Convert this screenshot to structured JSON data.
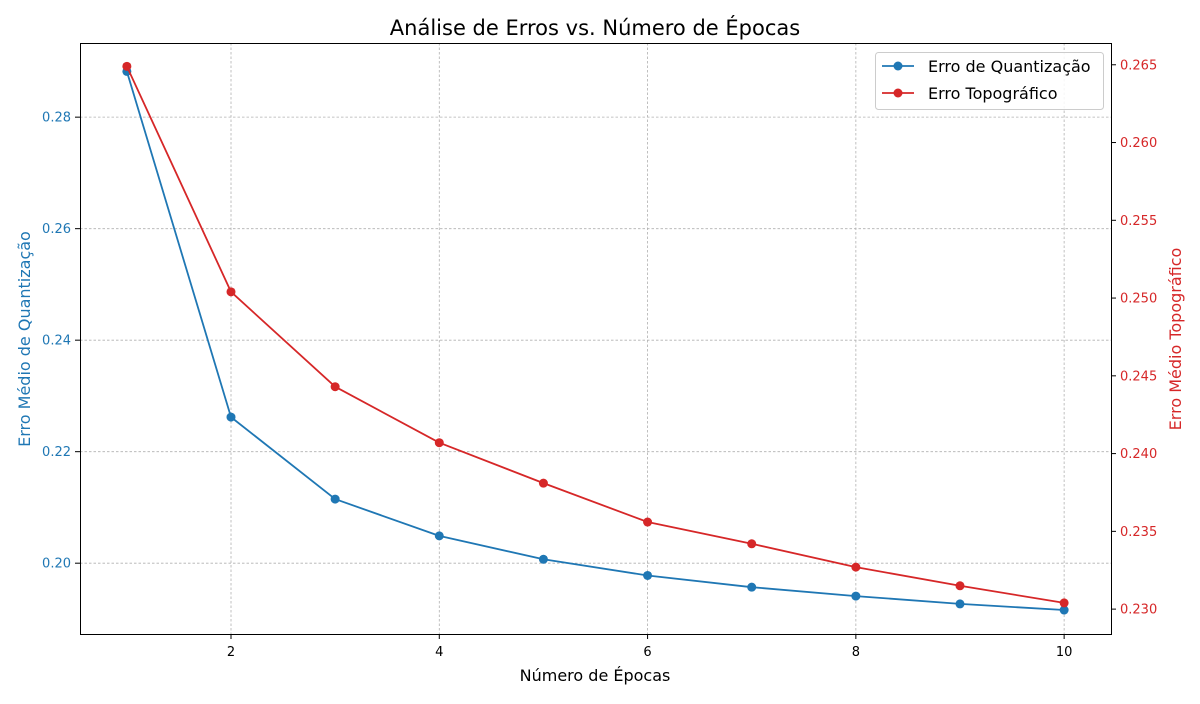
{
  "chart_data": {
    "type": "line",
    "title": "Análise de Erros vs. Número de Épocas",
    "xlabel": "Número de Épocas",
    "ylabel_left": "Erro Médio de Quantização",
    "ylabel_right": "Erro Médio Topográfico",
    "x": [
      1,
      2,
      3,
      4,
      5,
      6,
      7,
      8,
      9,
      10
    ],
    "xlim": [
      0.55,
      10.45
    ],
    "xticks": [
      2,
      4,
      6,
      8,
      10
    ],
    "y_left_lim": [
      0.1873,
      0.2933
    ],
    "y_left_ticks": [
      0.2,
      0.22,
      0.24,
      0.26,
      0.28
    ],
    "y_right_lim": [
      0.2284,
      0.2664
    ],
    "y_right_ticks": [
      0.23,
      0.235,
      0.24,
      0.245,
      0.25,
      0.255,
      0.26,
      0.265
    ],
    "grid": true,
    "legend_position": "top-right",
    "series": [
      {
        "name": "Erro de Quantização",
        "axis": "left",
        "color": "#1f77b4",
        "marker": "circle",
        "values": [
          0.2882,
          0.2262,
          0.2115,
          0.2049,
          0.2007,
          0.1978,
          0.1957,
          0.1941,
          0.1927,
          0.1916
        ]
      },
      {
        "name": "Erro Topográfico",
        "axis": "right",
        "color": "#d62728",
        "marker": "circle",
        "values": [
          0.2649,
          0.2504,
          0.2443,
          0.2407,
          0.2381,
          0.2356,
          0.2342,
          0.2327,
          0.2315,
          0.2304
        ]
      }
    ]
  }
}
